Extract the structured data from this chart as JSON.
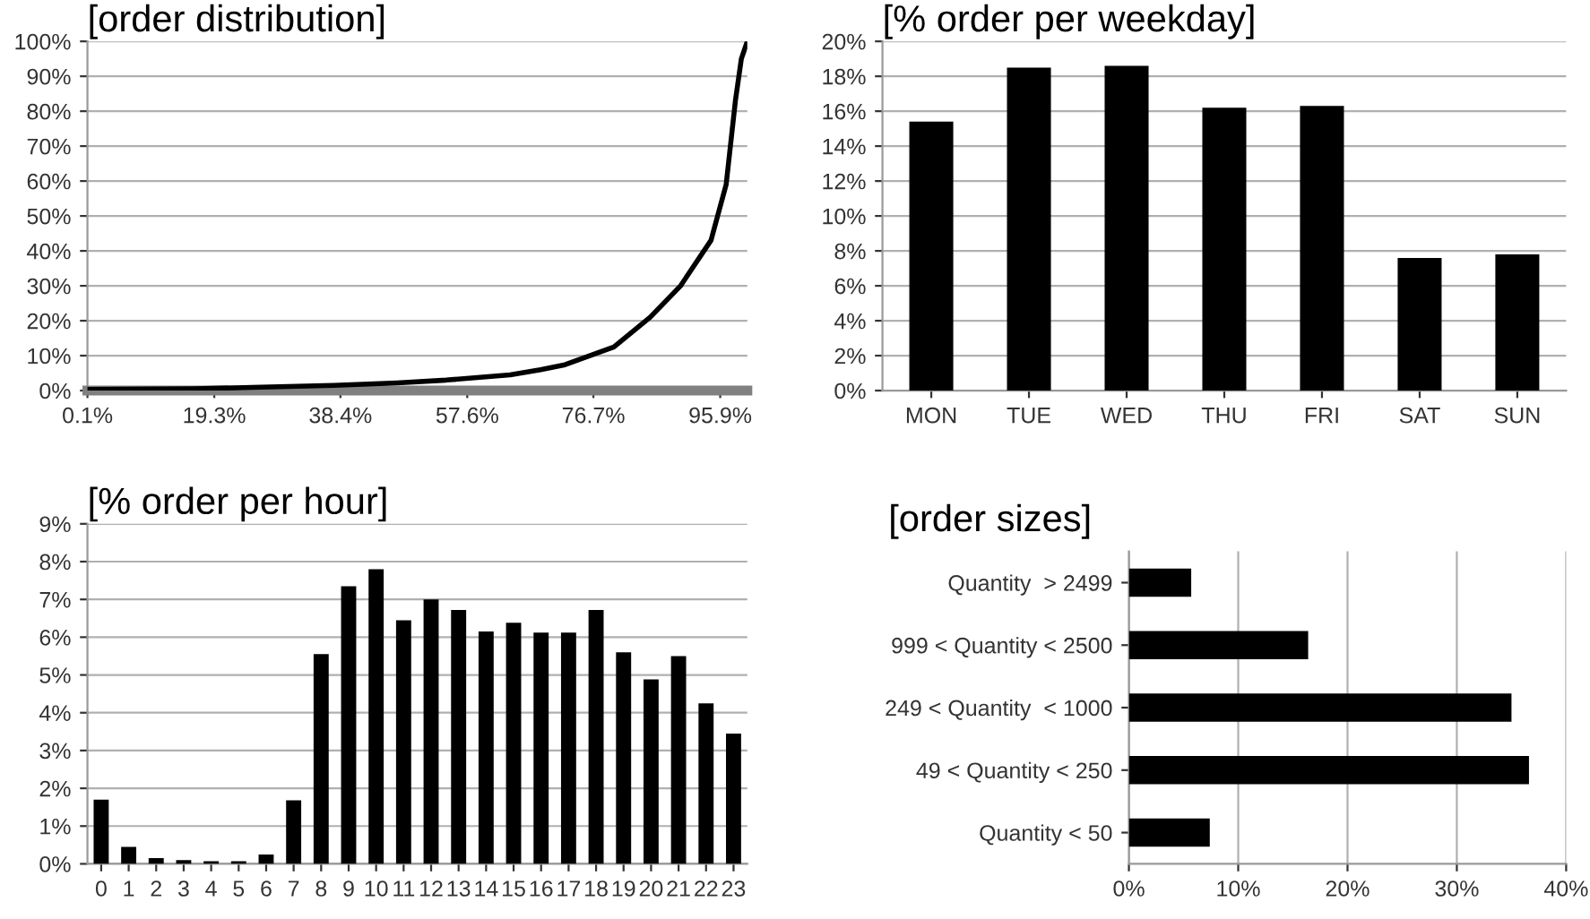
{
  "chart_data": [
    {
      "type": "line",
      "title": "[order distribution]",
      "x": [
        0.1,
        5,
        16.2,
        25,
        37.4,
        47,
        54.4,
        64.1,
        68.7,
        72.4,
        79.8,
        85.3,
        89.9,
        94.5,
        96.8,
        98.2,
        99.1,
        100
      ],
      "series": [
        {
          "color": "#000000",
          "values": [
            0.3,
            0.4,
            0.5,
            0.9,
            1.5,
            2.2,
            3.0,
            4.5,
            6,
            7.4,
            12.5,
            21,
            30,
            43,
            59,
            83,
            95,
            100
          ]
        }
      ],
      "xlim": [
        0.1,
        100
      ],
      "xticks": [
        {
          "value": 0.1,
          "label": "0.1%"
        },
        {
          "value": 19.3,
          "label": "19.3%"
        },
        {
          "value": 38.4,
          "label": "38.4%"
        },
        {
          "value": 57.6,
          "label": "57.6%"
        },
        {
          "value": 76.7,
          "label": "76.7%"
        },
        {
          "value": 95.9,
          "label": "95.9%"
        }
      ],
      "ylim": [
        0,
        100
      ],
      "yticks": [
        {
          "value": 0,
          "label": "0%"
        },
        {
          "value": 10,
          "label": "10%"
        },
        {
          "value": 20,
          "label": "20%"
        },
        {
          "value": 30,
          "label": "30%"
        },
        {
          "value": 40,
          "label": "40%"
        },
        {
          "value": 50,
          "label": "50%"
        },
        {
          "value": 60,
          "label": "60%"
        },
        {
          "value": 70,
          "label": "70%"
        },
        {
          "value": 80,
          "label": "80%"
        },
        {
          "value": 90,
          "label": "90%"
        },
        {
          "value": 100,
          "label": "100%"
        }
      ],
      "grid": "y",
      "marker": "none",
      "line_style": "solid"
    },
    {
      "type": "bar",
      "title": "[% order per weekday]",
      "categories": [
        "MON",
        "TUE",
        "WED",
        "THU",
        "FRI",
        "SAT",
        "SUN"
      ],
      "values": [
        15.4,
        18.5,
        18.6,
        16.2,
        16.3,
        7.6,
        7.8
      ],
      "color": "#000000",
      "ylim": [
        0,
        20
      ],
      "yticks": [
        {
          "value": 0,
          "label": "0%"
        },
        {
          "value": 2,
          "label": "2%"
        },
        {
          "value": 4,
          "label": "4%"
        },
        {
          "value": 6,
          "label": "6%"
        },
        {
          "value": 8,
          "label": "8%"
        },
        {
          "value": 10,
          "label": "10%"
        },
        {
          "value": 12,
          "label": "12%"
        },
        {
          "value": 14,
          "label": "14%"
        },
        {
          "value": 16,
          "label": "16%"
        },
        {
          "value": 18,
          "label": "18%"
        },
        {
          "value": 20,
          "label": "20%"
        }
      ],
      "grid": "y"
    },
    {
      "type": "bar",
      "title": "[% order per hour]",
      "categories": [
        "0",
        "1",
        "2",
        "3",
        "4",
        "5",
        "6",
        "7",
        "8",
        "9",
        "10",
        "11",
        "12",
        "13",
        "14",
        "15",
        "16",
        "17",
        "18",
        "19",
        "20",
        "21",
        "22",
        "23"
      ],
      "values": [
        1.7,
        0.45,
        0.15,
        0.1,
        0.07,
        0.07,
        0.25,
        1.68,
        5.55,
        7.35,
        7.8,
        6.45,
        7.0,
        6.72,
        6.15,
        6.38,
        6.12,
        6.12,
        6.72,
        5.6,
        4.88,
        5.5,
        4.25,
        3.45
      ],
      "color": "#000000",
      "ylim": [
        0,
        9
      ],
      "yticks": [
        {
          "value": 0,
          "label": "0%"
        },
        {
          "value": 1,
          "label": "1%"
        },
        {
          "value": 2,
          "label": "2%"
        },
        {
          "value": 3,
          "label": "3%"
        },
        {
          "value": 4,
          "label": "4%"
        },
        {
          "value": 5,
          "label": "5%"
        },
        {
          "value": 6,
          "label": "6%"
        },
        {
          "value": 7,
          "label": "7%"
        },
        {
          "value": 8,
          "label": "8%"
        },
        {
          "value": 9,
          "label": "9%"
        }
      ],
      "grid": "y"
    },
    {
      "type": "bar",
      "orientation": "horizontal",
      "title": "[order sizes]",
      "categories": [
        "Quantity  > 2499",
        "999 < Quantity < 2500",
        "249 < Quantity  < 1000",
        "49 < Quantity < 250",
        "Quantity < 50"
      ],
      "values": [
        5.7,
        16.4,
        35.0,
        36.6,
        7.4
      ],
      "color": "#000000",
      "xlim": [
        0,
        40
      ],
      "xticks": [
        {
          "value": 0,
          "label": "0%"
        },
        {
          "value": 10,
          "label": "10%"
        },
        {
          "value": 20,
          "label": "20%"
        },
        {
          "value": 30,
          "label": "30%"
        },
        {
          "value": 40,
          "label": "40%"
        }
      ],
      "grid": "x"
    }
  ]
}
